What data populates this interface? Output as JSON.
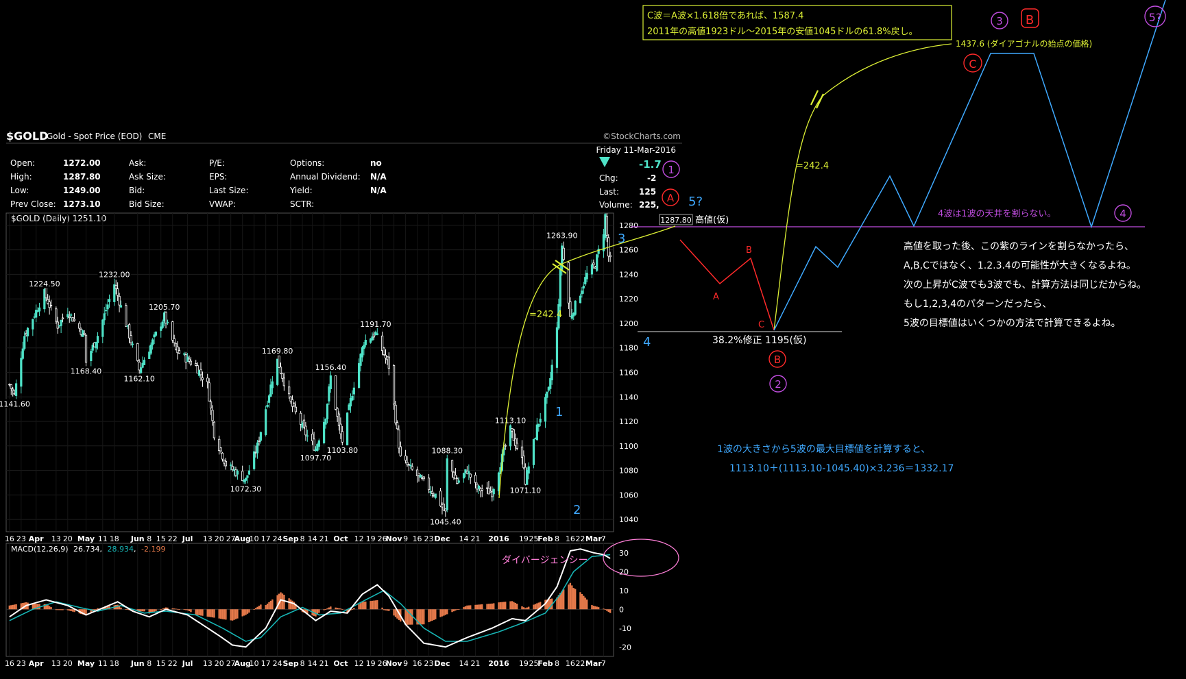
{
  "header": {
    "symbol": "$GOLD",
    "name": "Gold - Spot Price (EOD)",
    "exchange": "CME",
    "source": "©StockCharts.com",
    "date": "Friday  11-Mar-2016",
    "series_label": "$GOLD (Daily) 1251.10"
  },
  "quote": {
    "rows": [
      [
        {
          "k": "Open:",
          "v": "1272.00"
        },
        {
          "k": "Ask:",
          "v": ""
        },
        {
          "k": "P/E:",
          "v": ""
        },
        {
          "k": "Options:",
          "v": "no"
        }
      ],
      [
        {
          "k": "High:",
          "v": "1287.80"
        },
        {
          "k": "Ask Size:",
          "v": ""
        },
        {
          "k": "EPS:",
          "v": ""
        },
        {
          "k": "Annual Dividend:",
          "v": "N/A"
        }
      ],
      [
        {
          "k": "Low:",
          "v": "1249.00"
        },
        {
          "k": "Bid:",
          "v": ""
        },
        {
          "k": "Last Size:",
          "v": ""
        },
        {
          "k": "Yield:",
          "v": "N/A"
        }
      ],
      [
        {
          "k": "Prev Close:",
          "v": "1273.10"
        },
        {
          "k": "Bid Size:",
          "v": ""
        },
        {
          "k": "VWAP:",
          "v": ""
        },
        {
          "k": "SCTR:",
          "v": ""
        }
      ]
    ],
    "change": "-1.7",
    "chg_label": "Chg:",
    "chg_value": "-2",
    "last_label": "Last:",
    "last_value": "125",
    "volume_label": "Volume:",
    "volume_value": "225,"
  },
  "macd": {
    "label": "MACD(12,26,9)",
    "v1": "26.734",
    "v2": "28.934",
    "v3": "-2.199"
  },
  "colors": {
    "up": "#4fe3c8",
    "down": "#ffffff",
    "yellow": "#dcef35",
    "cyan": "#3fa9ff",
    "red": "#ff2a2a",
    "purple": "#c04ddf",
    "hist": "#e5794a",
    "signal": "#17b4b4",
    "white": "#ffffff",
    "pink": "#ff7fd8",
    "lightpurple": "#dd88ee"
  },
  "chart_data": {
    "type": "candlestick",
    "title": "$GOLD (Daily)",
    "ylim": [
      1030,
      1290
    ],
    "y_ticks": [
      1040,
      1060,
      1080,
      1100,
      1120,
      1140,
      1160,
      1180,
      1200,
      1220,
      1240,
      1260,
      1280
    ],
    "x_ticks": [
      {
        "label": "16",
        "bold": false,
        "d": "2015-03-16"
      },
      {
        "label": "23",
        "bold": false,
        "d": "2015-03-23"
      },
      {
        "label": "Apr",
        "bold": true,
        "d": "2015-04-01"
      },
      {
        "label": "13",
        "bold": false,
        "d": "2015-04-13"
      },
      {
        "label": "20",
        "bold": false,
        "d": "2015-04-20"
      },
      {
        "label": "May",
        "bold": true,
        "d": "2015-05-01"
      },
      {
        "label": "11",
        "bold": false,
        "d": "2015-05-11"
      },
      {
        "label": "18",
        "bold": false,
        "d": "2015-05-18"
      },
      {
        "label": "Jun",
        "bold": true,
        "d": "2015-06-01"
      },
      {
        "label": "8",
        "bold": false,
        "d": "2015-06-08"
      },
      {
        "label": "15",
        "bold": false,
        "d": "2015-06-15"
      },
      {
        "label": "22",
        "bold": false,
        "d": "2015-06-22"
      },
      {
        "label": "Jul",
        "bold": true,
        "d": "2015-07-01"
      },
      {
        "label": "13",
        "bold": false,
        "d": "2015-07-13"
      },
      {
        "label": "20",
        "bold": false,
        "d": "2015-07-20"
      },
      {
        "label": "27",
        "bold": false,
        "d": "2015-07-27"
      },
      {
        "label": "Aug",
        "bold": true,
        "d": "2015-08-03"
      },
      {
        "label": "10",
        "bold": false,
        "d": "2015-08-10"
      },
      {
        "label": "17",
        "bold": false,
        "d": "2015-08-17"
      },
      {
        "label": "24",
        "bold": false,
        "d": "2015-08-24"
      },
      {
        "label": "Sep",
        "bold": true,
        "d": "2015-09-01"
      },
      {
        "label": "8",
        "bold": false,
        "d": "2015-09-08"
      },
      {
        "label": "14",
        "bold": false,
        "d": "2015-09-14"
      },
      {
        "label": "21",
        "bold": false,
        "d": "2015-09-21"
      },
      {
        "label": "Oct",
        "bold": true,
        "d": "2015-10-01"
      },
      {
        "label": "12",
        "bold": false,
        "d": "2015-10-12"
      },
      {
        "label": "19",
        "bold": false,
        "d": "2015-10-19"
      },
      {
        "label": "26",
        "bold": false,
        "d": "2015-10-26"
      },
      {
        "label": "Nov",
        "bold": true,
        "d": "2015-11-02"
      },
      {
        "label": "9",
        "bold": false,
        "d": "2015-11-09"
      },
      {
        "label": "16",
        "bold": false,
        "d": "2015-11-16"
      },
      {
        "label": "23",
        "bold": false,
        "d": "2015-11-23"
      },
      {
        "label": "Dec",
        "bold": true,
        "d": "2015-12-01"
      },
      {
        "label": "14",
        "bold": false,
        "d": "2015-12-14"
      },
      {
        "label": "21",
        "bold": false,
        "d": "2015-12-21"
      },
      {
        "label": "2016",
        "bold": true,
        "d": "2016-01-04"
      },
      {
        "label": "19",
        "bold": false,
        "d": "2016-01-19"
      },
      {
        "label": "25",
        "bold": false,
        "d": "2016-01-25"
      },
      {
        "label": "Feb",
        "bold": true,
        "d": "2016-02-01"
      },
      {
        "label": "8",
        "bold": false,
        "d": "2016-02-08"
      },
      {
        "label": "16",
        "bold": false,
        "d": "2016-02-16"
      },
      {
        "label": "22",
        "bold": false,
        "d": "2016-02-22"
      },
      {
        "label": "Mar",
        "bold": true,
        "d": "2016-03-01"
      },
      {
        "label": "7",
        "bold": false,
        "d": "2016-03-07"
      }
    ],
    "anchors": [
      {
        "d": "2015-03-16",
        "c": 1150
      },
      {
        "d": "2015-03-19",
        "c": 1141.6
      },
      {
        "d": "2015-03-25",
        "c": 1190
      },
      {
        "d": "2015-04-06",
        "c": 1224.5
      },
      {
        "d": "2015-04-14",
        "c": 1198
      },
      {
        "d": "2015-04-20",
        "c": 1210
      },
      {
        "d": "2015-04-30",
        "c": 1190
      },
      {
        "d": "2015-05-01",
        "c": 1168.4
      },
      {
        "d": "2015-05-08",
        "c": 1190
      },
      {
        "d": "2015-05-18",
        "c": 1232
      },
      {
        "d": "2015-05-26",
        "c": 1195
      },
      {
        "d": "2015-06-02",
        "c": 1162.1
      },
      {
        "d": "2015-06-10",
        "c": 1185
      },
      {
        "d": "2015-06-17",
        "c": 1205.7
      },
      {
        "d": "2015-06-24",
        "c": 1178
      },
      {
        "d": "2015-07-06",
        "c": 1165
      },
      {
        "d": "2015-07-13",
        "c": 1150
      },
      {
        "d": "2015-07-17",
        "c": 1110
      },
      {
        "d": "2015-07-24",
        "c": 1085
      },
      {
        "d": "2015-08-05",
        "c": 1072.3
      },
      {
        "d": "2015-08-12",
        "c": 1100
      },
      {
        "d": "2015-08-21",
        "c": 1155
      },
      {
        "d": "2015-08-24",
        "c": 1169.8
      },
      {
        "d": "2015-09-01",
        "c": 1135
      },
      {
        "d": "2015-09-10",
        "c": 1110
      },
      {
        "d": "2015-09-16",
        "c": 1097.7
      },
      {
        "d": "2015-09-22",
        "c": 1125
      },
      {
        "d": "2015-09-25",
        "c": 1156.4
      },
      {
        "d": "2015-09-30",
        "c": 1115
      },
      {
        "d": "2015-10-02",
        "c": 1103.8
      },
      {
        "d": "2015-10-09",
        "c": 1150
      },
      {
        "d": "2015-10-15",
        "c": 1185
      },
      {
        "d": "2015-10-22",
        "c": 1191.7
      },
      {
        "d": "2015-10-30",
        "c": 1165
      },
      {
        "d": "2015-11-06",
        "c": 1090
      },
      {
        "d": "2015-11-13",
        "c": 1080
      },
      {
        "d": "2015-11-20",
        "c": 1070
      },
      {
        "d": "2015-11-27",
        "c": 1060
      },
      {
        "d": "2015-12-03",
        "c": 1045.4
      },
      {
        "d": "2015-12-04",
        "c": 1088.3
      },
      {
        "d": "2015-12-10",
        "c": 1070
      },
      {
        "d": "2015-12-16",
        "c": 1080
      },
      {
        "d": "2015-12-22",
        "c": 1065
      },
      {
        "d": "2015-12-31",
        "c": 1062
      },
      {
        "d": "2016-01-08",
        "c": 1100
      },
      {
        "d": "2016-01-11",
        "c": 1113.1
      },
      {
        "d": "2016-01-19",
        "c": 1085
      },
      {
        "d": "2016-01-20",
        "c": 1071.1
      },
      {
        "d": "2016-01-27",
        "c": 1115
      },
      {
        "d": "2016-02-03",
        "c": 1145
      },
      {
        "d": "2016-02-08",
        "c": 1195
      },
      {
        "d": "2016-02-11",
        "c": 1263.9
      },
      {
        "d": "2016-02-16",
        "c": 1205
      },
      {
        "d": "2016-02-22",
        "c": 1225
      },
      {
        "d": "2016-02-26",
        "c": 1240
      },
      {
        "d": "2016-03-02",
        "c": 1248
      },
      {
        "d": "2016-03-07",
        "c": 1275
      },
      {
        "d": "2016-03-08",
        "c": 1287.8
      },
      {
        "d": "2016-03-10",
        "c": 1255
      },
      {
        "d": "2016-03-11",
        "c": 1251.1
      }
    ],
    "labels": [
      {
        "t": "1141.60",
        "d": "2015-03-19",
        "v": 1141.6,
        "pos": "below"
      },
      {
        "t": "1224.50",
        "d": "2015-04-06",
        "v": 1224.5,
        "pos": "above"
      },
      {
        "t": "1168.40",
        "d": "2015-05-01",
        "v": 1168.4,
        "pos": "below"
      },
      {
        "t": "1232.00",
        "d": "2015-05-18",
        "v": 1232.0,
        "pos": "above"
      },
      {
        "t": "1162.10",
        "d": "2015-06-02",
        "v": 1162.1,
        "pos": "below"
      },
      {
        "t": "1205.70",
        "d": "2015-06-17",
        "v": 1205.7,
        "pos": "above"
      },
      {
        "t": "1072.30",
        "d": "2015-08-05",
        "v": 1072.3,
        "pos": "below"
      },
      {
        "t": "1169.80",
        "d": "2015-08-24",
        "v": 1169.8,
        "pos": "above"
      },
      {
        "t": "1097.70",
        "d": "2015-09-16",
        "v": 1097.7,
        "pos": "below"
      },
      {
        "t": "1156.40",
        "d": "2015-09-25",
        "v": 1156.4,
        "pos": "above"
      },
      {
        "t": "1103.80",
        "d": "2015-10-02",
        "v": 1103.8,
        "pos": "below"
      },
      {
        "t": "1191.70",
        "d": "2015-10-22",
        "v": 1191.7,
        "pos": "above"
      },
      {
        "t": "1045.40",
        "d": "2015-12-03",
        "v": 1045.4,
        "pos": "below"
      },
      {
        "t": "1088.30",
        "d": "2015-12-04",
        "v": 1088.3,
        "pos": "above"
      },
      {
        "t": "1113.10",
        "d": "2016-01-11",
        "v": 1113.1,
        "pos": "above"
      },
      {
        "t": "1071.10",
        "d": "2016-01-20",
        "v": 1071.1,
        "pos": "below"
      },
      {
        "t": "1263.90",
        "d": "2016-02-11",
        "v": 1263.9,
        "pos": "above"
      }
    ],
    "macd_ylim": [
      -25,
      35
    ],
    "macd_ticks": [
      30,
      20,
      10,
      0,
      -10,
      -20
    ],
    "macd_line": [
      {
        "d": "2015-03-16",
        "v": -4
      },
      {
        "d": "2015-03-26",
        "v": 2
      },
      {
        "d": "2015-04-07",
        "v": 5
      },
      {
        "d": "2015-04-20",
        "v": 2
      },
      {
        "d": "2015-05-01",
        "v": -3
      },
      {
        "d": "2015-05-20",
        "v": 4
      },
      {
        "d": "2015-05-29",
        "v": -1
      },
      {
        "d": "2015-06-08",
        "v": -4
      },
      {
        "d": "2015-06-18",
        "v": 0
      },
      {
        "d": "2015-07-01",
        "v": -3
      },
      {
        "d": "2015-07-20",
        "v": -14
      },
      {
        "d": "2015-07-28",
        "v": -19
      },
      {
        "d": "2015-08-05",
        "v": -20
      },
      {
        "d": "2015-08-17",
        "v": -10
      },
      {
        "d": "2015-08-26",
        "v": 5
      },
      {
        "d": "2015-09-03",
        "v": 3
      },
      {
        "d": "2015-09-16",
        "v": -6
      },
      {
        "d": "2015-09-25",
        "v": -1
      },
      {
        "d": "2015-10-05",
        "v": -2
      },
      {
        "d": "2015-10-14",
        "v": 8
      },
      {
        "d": "2015-10-23",
        "v": 13
      },
      {
        "d": "2015-10-30",
        "v": 7
      },
      {
        "d": "2015-11-09",
        "v": -8
      },
      {
        "d": "2015-11-20",
        "v": -18
      },
      {
        "d": "2015-12-03",
        "v": -20
      },
      {
        "d": "2015-12-16",
        "v": -15
      },
      {
        "d": "2015-12-31",
        "v": -10
      },
      {
        "d": "2016-01-12",
        "v": -5
      },
      {
        "d": "2016-01-20",
        "v": -6
      },
      {
        "d": "2016-02-01",
        "v": 3
      },
      {
        "d": "2016-02-08",
        "v": 12
      },
      {
        "d": "2016-02-16",
        "v": 31
      },
      {
        "d": "2016-02-22",
        "v": 32
      },
      {
        "d": "2016-03-01",
        "v": 30
      },
      {
        "d": "2016-03-07",
        "v": 29
      },
      {
        "d": "2016-03-11",
        "v": 27
      }
    ],
    "signal_line": [
      {
        "d": "2015-03-16",
        "v": -6
      },
      {
        "d": "2015-03-30",
        "v": 0
      },
      {
        "d": "2015-04-13",
        "v": 4
      },
      {
        "d": "2015-04-27",
        "v": 1
      },
      {
        "d": "2015-05-08",
        "v": -1
      },
      {
        "d": "2015-05-22",
        "v": 2
      },
      {
        "d": "2015-06-05",
        "v": -2
      },
      {
        "d": "2015-06-18",
        "v": -1
      },
      {
        "d": "2015-07-06",
        "v": -3
      },
      {
        "d": "2015-07-22",
        "v": -10
      },
      {
        "d": "2015-08-05",
        "v": -17
      },
      {
        "d": "2015-08-14",
        "v": -15
      },
      {
        "d": "2015-08-26",
        "v": -4
      },
      {
        "d": "2015-09-08",
        "v": 1
      },
      {
        "d": "2015-09-18",
        "v": -3
      },
      {
        "d": "2015-10-01",
        "v": -2
      },
      {
        "d": "2015-10-16",
        "v": 5
      },
      {
        "d": "2015-10-27",
        "v": 10
      },
      {
        "d": "2015-11-06",
        "v": 3
      },
      {
        "d": "2015-11-20",
        "v": -10
      },
      {
        "d": "2015-12-03",
        "v": -17
      },
      {
        "d": "2015-12-16",
        "v": -17
      },
      {
        "d": "2016-01-04",
        "v": -12
      },
      {
        "d": "2016-01-19",
        "v": -7
      },
      {
        "d": "2016-02-01",
        "v": -2
      },
      {
        "d": "2016-02-10",
        "v": 8
      },
      {
        "d": "2016-02-18",
        "v": 20
      },
      {
        "d": "2016-02-29",
        "v": 28
      },
      {
        "d": "2016-03-11",
        "v": 29
      }
    ]
  },
  "annotations": {
    "box_line1": "C波＝A波×1.618倍であれば、1587.4",
    "box_line2": "2011年の高値1923ドル～2015年の安値1045ドルの61.8%戻し。",
    "target_c": "1437.6 (ダイアゴナルの始点の価格)",
    "eq_left": "=242.4",
    "eq_right": "=242.4",
    "high_price": "1287.80",
    "high_label": "高値(仮)",
    "fib_label": "38.2%修正 1195(仮)",
    "wave4_note": "4波は1波の天井を割らない。",
    "note_lines": [
      "高値を取った後、この紫のラインを割らなかったら、",
      "A,B,Cではなく、1.2.3.4の可能性が大きくなるよね。",
      "次の上昇がC波でも3波でも、計算方法は同じだからね。",
      "もし1,2,3,4のパターンだったら、",
      "5波の目標値はいくつかの方法で計算できるよね。"
    ],
    "calc_line1": "1波の大きさから5波の最大目標値を計算すると、",
    "calc_line2": "1113.10＋(1113.10-1045.40)×3.236＝1332.17",
    "divergence": "ダイバージェンシー",
    "wave_labels": {
      "w1": "1",
      "w2": "2",
      "w3": "3",
      "w4": "4",
      "w5q": "5?",
      "c1": "①",
      "c2": "②",
      "c3": "③",
      "c4": "④",
      "cA": "A",
      "cB": "B",
      "cC": "C",
      "sA": "A",
      "sB": "B",
      "sC": "C",
      "c5q": "5?"
    }
  }
}
